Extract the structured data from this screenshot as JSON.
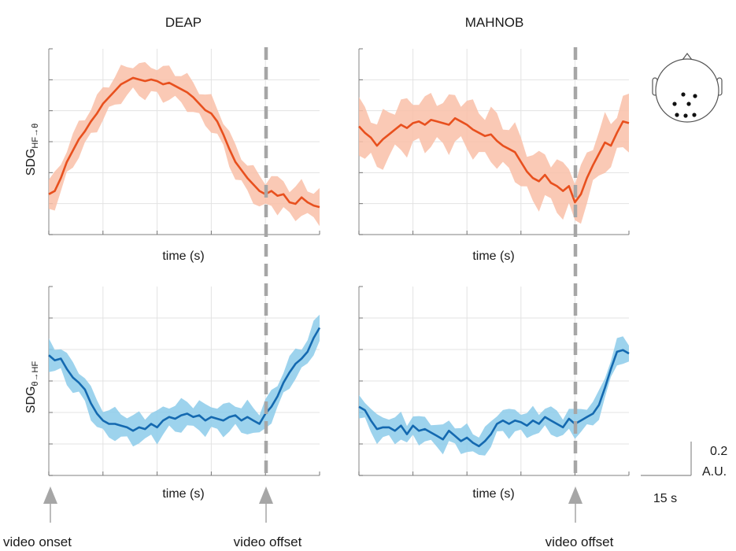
{
  "columns": [
    "DEAP",
    "MAHNOB"
  ],
  "ylabels": {
    "top": {
      "base": "SDG",
      "sub": "HF→θ"
    },
    "bottom": {
      "base": "SDG",
      "sub": "θ→HF"
    }
  },
  "xlabel": "time (s)",
  "annotations": {
    "onset": "video onset",
    "offset": "video offset"
  },
  "scalebar": {
    "y_value": "0.2",
    "y_unit": "A.U.",
    "x_label": "15 s"
  },
  "colors": {
    "orange_line": "#e8501e",
    "orange_band": "#f9bfa8",
    "blue_line": "#1469b0",
    "blue_band": "#8ccbea",
    "grid": "#e3e3e3",
    "dash": "#a6a6a6",
    "arrow": "#a6a6a6"
  },
  "chart_data": [
    {
      "type": "line",
      "panel": "DEAP top",
      "title": "DEAP",
      "xlabel": "time (s)",
      "ylabel": "SDG HF→θ",
      "x": [
        0,
        2,
        4,
        6,
        8,
        10,
        12,
        14,
        16,
        18,
        20,
        22,
        24,
        26,
        28,
        30,
        32,
        34,
        36,
        38,
        40,
        42,
        44,
        46,
        48,
        50,
        52,
        54,
        56,
        58,
        60,
        62,
        64,
        66,
        68,
        70,
        72,
        74,
        76,
        78,
        80,
        82,
        84,
        86,
        88,
        90
      ],
      "series": [
        {
          "color": "orange",
          "values": [
            0.1,
            0.12,
            0.2,
            0.3,
            0.37,
            0.44,
            0.49,
            0.55,
            0.6,
            0.66,
            0.7,
            0.74,
            0.78,
            0.8,
            0.82,
            0.81,
            0.8,
            0.81,
            0.8,
            0.78,
            0.79,
            0.77,
            0.75,
            0.73,
            0.7,
            0.66,
            0.62,
            0.6,
            0.55,
            0.47,
            0.38,
            0.3,
            0.25,
            0.2,
            0.16,
            0.12,
            0.1,
            0.12,
            0.09,
            0.1,
            0.05,
            0.04,
            0.08,
            0.05,
            0.03,
            0.02
          ],
          "band": 0.09
        }
      ]
    },
    {
      "type": "line",
      "panel": "MAHNOB top",
      "title": "MAHNOB",
      "xlabel": "time (s)",
      "ylabel": "",
      "x": [
        0,
        2,
        4,
        6,
        8,
        10,
        12,
        14,
        16,
        18,
        20,
        22,
        24,
        26,
        28,
        30,
        32,
        34,
        36,
        38,
        40,
        42,
        44,
        46,
        48,
        50,
        52,
        54,
        56,
        58,
        60,
        62,
        64,
        66,
        68,
        70,
        72,
        74,
        76,
        78,
        80,
        82,
        84,
        86,
        88,
        90
      ],
      "series": [
        {
          "color": "orange",
          "values": [
            0.52,
            0.48,
            0.45,
            0.4,
            0.44,
            0.47,
            0.5,
            0.53,
            0.51,
            0.54,
            0.55,
            0.53,
            0.56,
            0.55,
            0.54,
            0.53,
            0.57,
            0.55,
            0.53,
            0.5,
            0.48,
            0.46,
            0.47,
            0.43,
            0.4,
            0.38,
            0.36,
            0.3,
            0.24,
            0.2,
            0.18,
            0.22,
            0.17,
            0.15,
            0.12,
            0.15,
            0.05,
            0.1,
            0.2,
            0.28,
            0.35,
            0.42,
            0.4,
            0.48,
            0.55,
            0.54
          ],
          "band": 0.14
        }
      ]
    },
    {
      "type": "line",
      "panel": "DEAP bottom",
      "title": "",
      "xlabel": "time (s)",
      "ylabel": "SDG θ→HF",
      "x": [
        0,
        2,
        4,
        6,
        8,
        10,
        12,
        14,
        16,
        18,
        20,
        22,
        24,
        26,
        28,
        30,
        32,
        34,
        36,
        38,
        40,
        42,
        44,
        46,
        48,
        50,
        52,
        54,
        56,
        58,
        60,
        62,
        64,
        66,
        68,
        70,
        72,
        74,
        76,
        78,
        80,
        82,
        84,
        86,
        88,
        90
      ],
      "series": [
        {
          "color": "blue",
          "values": [
            0.6,
            0.57,
            0.58,
            0.52,
            0.47,
            0.44,
            0.4,
            0.32,
            0.26,
            0.22,
            0.2,
            0.2,
            0.19,
            0.18,
            0.16,
            0.18,
            0.17,
            0.2,
            0.18,
            0.22,
            0.24,
            0.23,
            0.25,
            0.26,
            0.24,
            0.25,
            0.22,
            0.24,
            0.23,
            0.22,
            0.24,
            0.25,
            0.22,
            0.24,
            0.22,
            0.2,
            0.26,
            0.3,
            0.36,
            0.44,
            0.5,
            0.55,
            0.58,
            0.62,
            0.7,
            0.76
          ],
          "band": 0.075
        }
      ]
    },
    {
      "type": "line",
      "panel": "MAHNOB bottom",
      "title": "",
      "xlabel": "time (s)",
      "ylabel": "",
      "x": [
        0,
        2,
        4,
        6,
        8,
        10,
        12,
        14,
        16,
        18,
        20,
        22,
        24,
        26,
        28,
        30,
        32,
        34,
        36,
        38,
        40,
        42,
        44,
        46,
        48,
        50,
        52,
        54,
        56,
        58,
        60,
        62,
        64,
        66,
        68,
        70,
        72,
        74,
        76,
        78,
        80,
        82,
        84,
        86,
        88,
        90
      ],
      "series": [
        {
          "color": "blue",
          "values": [
            0.2,
            0.18,
            0.12,
            0.07,
            0.08,
            0.08,
            0.06,
            0.09,
            0.04,
            0.09,
            0.06,
            0.07,
            0.05,
            0.03,
            0.01,
            0.06,
            0.03,
            0.0,
            0.02,
            -0.01,
            -0.03,
            0.0,
            0.04,
            0.1,
            0.12,
            0.1,
            0.12,
            0.11,
            0.09,
            0.12,
            0.1,
            0.14,
            0.12,
            0.1,
            0.08,
            0.13,
            0.1,
            0.12,
            0.14,
            0.16,
            0.21,
            0.31,
            0.42,
            0.52,
            0.53,
            0.51
          ],
          "band": 0.065
        }
      ]
    }
  ]
}
